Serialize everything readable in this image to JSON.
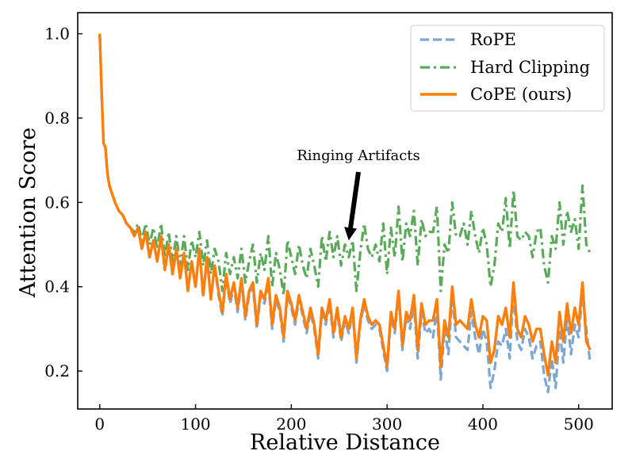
{
  "chart_data": {
    "type": "line",
    "title": "",
    "xlabel": "Relative Distance",
    "ylabel": "Attention Score",
    "xlim": [
      -23,
      535
    ],
    "ylim": [
      0.11,
      1.05
    ],
    "xticks": [
      0,
      100,
      200,
      300,
      400,
      500
    ],
    "xtick_labels": [
      "0",
      "100",
      "200",
      "300",
      "400",
      "500"
    ],
    "yticks": [
      0.2,
      0.4,
      0.6,
      0.8,
      1.0
    ],
    "ytick_labels": [
      "0.2",
      "0.4",
      "0.6",
      "0.8",
      "1.0"
    ],
    "grid": false,
    "legend_position": "top-right",
    "colors": {
      "rope": "#7ba7d4",
      "hard_clipping": "#5aaa5a",
      "cope": "#ff7f0e"
    },
    "annotation": {
      "text": "Ringing Artifacts",
      "target": [
        260,
        0.51
      ]
    },
    "series": [
      {
        "name": "RoPE",
        "style": "dashed",
        "x": [
          0,
          2,
          4,
          6,
          8,
          10,
          13,
          16,
          20,
          24,
          28,
          32,
          36,
          40,
          44,
          48,
          52,
          56,
          60,
          64,
          68,
          72,
          76,
          80,
          84,
          88,
          92,
          96,
          100,
          104,
          108,
          112,
          116,
          120,
          124,
          128,
          132,
          136,
          140,
          144,
          148,
          152,
          156,
          160,
          164,
          168,
          172,
          176,
          180,
          184,
          188,
          192,
          196,
          200,
          204,
          208,
          212,
          216,
          220,
          224,
          228,
          232,
          236,
          240,
          244,
          248,
          252,
          256,
          260,
          264,
          268,
          272,
          276,
          280,
          284,
          288,
          292,
          296,
          300,
          304,
          308,
          312,
          316,
          320,
          324,
          328,
          332,
          336,
          340,
          344,
          348,
          352,
          356,
          360,
          364,
          368,
          372,
          376,
          380,
          384,
          388,
          392,
          396,
          400,
          404,
          408,
          412,
          416,
          420,
          424,
          428,
          432,
          436,
          440,
          444,
          448,
          452,
          456,
          460,
          464,
          468,
          472,
          476,
          480,
          484,
          488,
          492,
          496,
          500,
          504,
          508,
          512
        ],
        "values": [
          1.0,
          0.86,
          0.74,
          0.73,
          0.67,
          0.64,
          0.62,
          0.6,
          0.58,
          0.57,
          0.55,
          0.54,
          0.52,
          0.54,
          0.49,
          0.53,
          0.47,
          0.51,
          0.46,
          0.52,
          0.44,
          0.5,
          0.43,
          0.49,
          0.42,
          0.48,
          0.39,
          0.46,
          0.4,
          0.49,
          0.38,
          0.47,
          0.37,
          0.45,
          0.38,
          0.33,
          0.42,
          0.36,
          0.4,
          0.34,
          0.41,
          0.32,
          0.38,
          0.4,
          0.3,
          0.38,
          0.36,
          0.41,
          0.3,
          0.37,
          0.34,
          0.27,
          0.38,
          0.35,
          0.31,
          0.37,
          0.33,
          0.29,
          0.34,
          0.3,
          0.23,
          0.34,
          0.31,
          0.36,
          0.28,
          0.34,
          0.27,
          0.32,
          0.29,
          0.34,
          0.22,
          0.31,
          0.36,
          0.32,
          0.3,
          0.31,
          0.3,
          0.25,
          0.2,
          0.33,
          0.29,
          0.38,
          0.25,
          0.33,
          0.3,
          0.36,
          0.23,
          0.34,
          0.29,
          0.3,
          0.28,
          0.35,
          0.18,
          0.3,
          0.24,
          0.38,
          0.28,
          0.27,
          0.26,
          0.25,
          0.34,
          0.28,
          0.24,
          0.3,
          0.27,
          0.16,
          0.2,
          0.27,
          0.26,
          0.3,
          0.23,
          0.39,
          0.27,
          0.25,
          0.3,
          0.28,
          0.23,
          0.26,
          0.27,
          0.19,
          0.15,
          0.23,
          0.16,
          0.3,
          0.22,
          0.33,
          0.24,
          0.31,
          0.28,
          0.39,
          0.3,
          0.22
        ]
      },
      {
        "name": "Hard Clipping",
        "style": "dashdot",
        "x": [
          0,
          2,
          4,
          6,
          8,
          10,
          13,
          16,
          20,
          24,
          28,
          32,
          36,
          40,
          44,
          48,
          52,
          56,
          60,
          64,
          68,
          72,
          76,
          80,
          84,
          88,
          92,
          96,
          100,
          104,
          108,
          112,
          116,
          120,
          124,
          128,
          132,
          136,
          140,
          144,
          148,
          152,
          156,
          160,
          164,
          168,
          172,
          176,
          180,
          184,
          188,
          192,
          196,
          200,
          204,
          208,
          212,
          216,
          220,
          224,
          228,
          232,
          236,
          240,
          244,
          248,
          252,
          256,
          260,
          264,
          268,
          272,
          276,
          280,
          284,
          288,
          292,
          296,
          300,
          304,
          308,
          312,
          316,
          320,
          324,
          328,
          332,
          336,
          340,
          344,
          348,
          352,
          356,
          360,
          364,
          368,
          372,
          376,
          380,
          384,
          388,
          392,
          396,
          400,
          404,
          408,
          412,
          416,
          420,
          424,
          428,
          432,
          436,
          440,
          444,
          448,
          452,
          456,
          460,
          464,
          468,
          472,
          476,
          480,
          484,
          488,
          492,
          496,
          500,
          504,
          508,
          512
        ],
        "values": [
          1.0,
          0.86,
          0.74,
          0.73,
          0.67,
          0.64,
          0.62,
          0.6,
          0.58,
          0.57,
          0.55,
          0.54,
          0.53,
          0.55,
          0.51,
          0.55,
          0.5,
          0.54,
          0.49,
          0.55,
          0.47,
          0.53,
          0.46,
          0.52,
          0.45,
          0.52,
          0.44,
          0.51,
          0.47,
          0.53,
          0.45,
          0.51,
          0.43,
          0.49,
          0.46,
          0.39,
          0.48,
          0.43,
          0.47,
          0.42,
          0.49,
          0.41,
          0.46,
          0.5,
          0.41,
          0.48,
          0.44,
          0.52,
          0.4,
          0.48,
          0.44,
          0.38,
          0.51,
          0.47,
          0.43,
          0.5,
          0.45,
          0.42,
          0.49,
          0.45,
          0.4,
          0.52,
          0.46,
          0.53,
          0.47,
          0.52,
          0.45,
          0.5,
          0.47,
          0.51,
          0.39,
          0.48,
          0.55,
          0.49,
          0.47,
          0.5,
          0.46,
          0.55,
          0.43,
          0.54,
          0.47,
          0.59,
          0.46,
          0.55,
          0.52,
          0.58,
          0.45,
          0.56,
          0.52,
          0.53,
          0.53,
          0.59,
          0.39,
          0.5,
          0.48,
          0.6,
          0.52,
          0.52,
          0.55,
          0.5,
          0.58,
          0.52,
          0.48,
          0.54,
          0.5,
          0.4,
          0.45,
          0.55,
          0.53,
          0.61,
          0.49,
          0.63,
          0.52,
          0.51,
          0.53,
          0.52,
          0.47,
          0.53,
          0.54,
          0.45,
          0.41,
          0.52,
          0.49,
          0.6,
          0.5,
          0.58,
          0.53,
          0.56,
          0.49,
          0.64,
          0.5,
          0.48
        ]
      },
      {
        "name": "CoPE (ours)",
        "style": "solid",
        "x": [
          0,
          2,
          4,
          6,
          8,
          10,
          13,
          16,
          20,
          24,
          28,
          32,
          36,
          40,
          44,
          48,
          52,
          56,
          60,
          64,
          68,
          72,
          76,
          80,
          84,
          88,
          92,
          96,
          100,
          104,
          108,
          112,
          116,
          120,
          124,
          128,
          132,
          136,
          140,
          144,
          148,
          152,
          156,
          160,
          164,
          168,
          172,
          176,
          180,
          184,
          188,
          192,
          196,
          200,
          204,
          208,
          212,
          216,
          220,
          224,
          228,
          232,
          236,
          240,
          244,
          248,
          252,
          256,
          260,
          264,
          268,
          272,
          276,
          280,
          284,
          288,
          292,
          296,
          300,
          304,
          308,
          312,
          316,
          320,
          324,
          328,
          332,
          336,
          340,
          344,
          348,
          352,
          356,
          360,
          364,
          368,
          372,
          376,
          380,
          384,
          388,
          392,
          396,
          400,
          404,
          408,
          412,
          416,
          420,
          424,
          428,
          432,
          436,
          440,
          444,
          448,
          452,
          456,
          460,
          464,
          468,
          472,
          476,
          480,
          484,
          488,
          492,
          496,
          500,
          504,
          508,
          512
        ],
        "values": [
          1.0,
          0.86,
          0.74,
          0.73,
          0.67,
          0.64,
          0.62,
          0.6,
          0.58,
          0.57,
          0.55,
          0.54,
          0.52,
          0.54,
          0.49,
          0.53,
          0.47,
          0.51,
          0.46,
          0.52,
          0.44,
          0.5,
          0.43,
          0.49,
          0.42,
          0.48,
          0.39,
          0.46,
          0.4,
          0.49,
          0.38,
          0.47,
          0.37,
          0.45,
          0.39,
          0.34,
          0.43,
          0.37,
          0.41,
          0.35,
          0.42,
          0.33,
          0.39,
          0.41,
          0.31,
          0.39,
          0.37,
          0.42,
          0.31,
          0.38,
          0.35,
          0.28,
          0.39,
          0.36,
          0.32,
          0.38,
          0.34,
          0.3,
          0.35,
          0.31,
          0.24,
          0.35,
          0.32,
          0.37,
          0.29,
          0.35,
          0.28,
          0.33,
          0.3,
          0.35,
          0.23,
          0.32,
          0.37,
          0.33,
          0.31,
          0.32,
          0.31,
          0.26,
          0.21,
          0.34,
          0.3,
          0.39,
          0.26,
          0.34,
          0.32,
          0.38,
          0.25,
          0.36,
          0.31,
          0.32,
          0.32,
          0.37,
          0.21,
          0.32,
          0.28,
          0.4,
          0.31,
          0.32,
          0.31,
          0.3,
          0.37,
          0.31,
          0.28,
          0.33,
          0.32,
          0.22,
          0.25,
          0.33,
          0.31,
          0.35,
          0.28,
          0.41,
          0.3,
          0.28,
          0.33,
          0.31,
          0.27,
          0.3,
          0.3,
          0.24,
          0.19,
          0.27,
          0.22,
          0.34,
          0.27,
          0.36,
          0.29,
          0.35,
          0.31,
          0.41,
          0.27,
          0.25
        ]
      }
    ]
  }
}
